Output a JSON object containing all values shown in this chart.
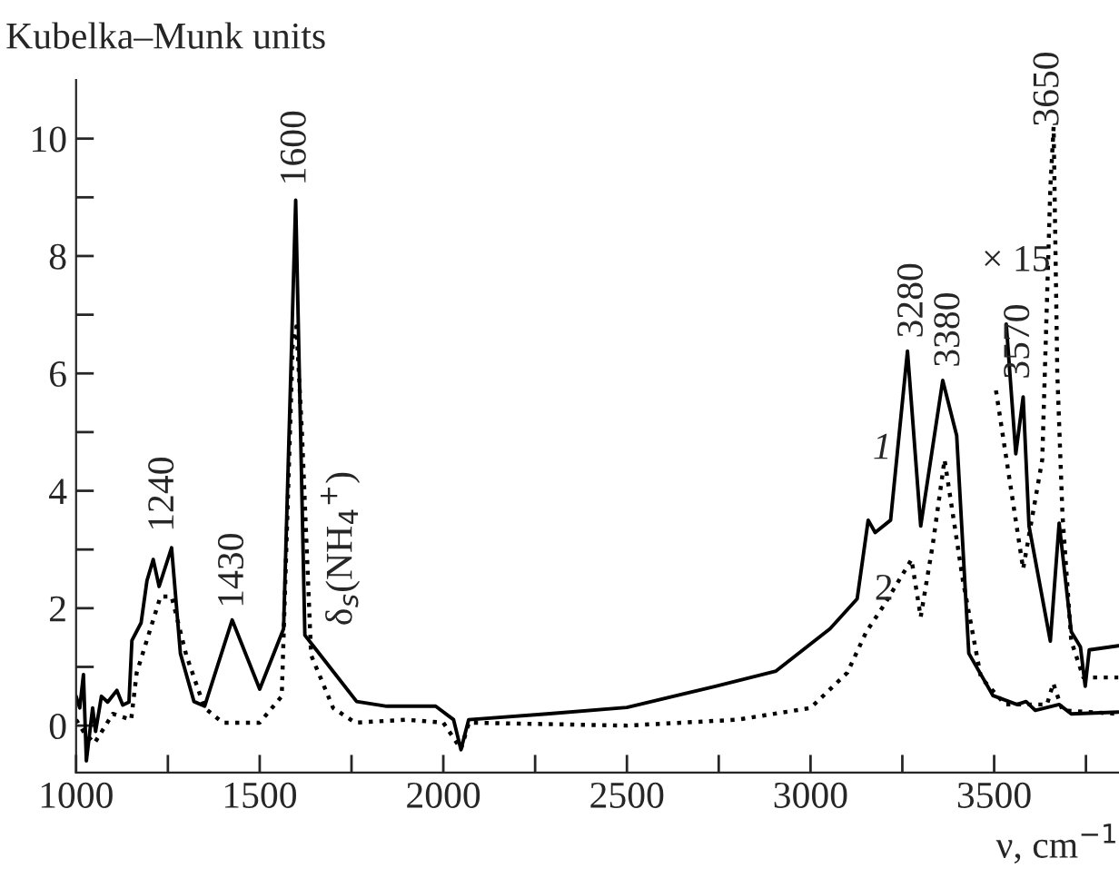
{
  "chart_data": {
    "type": "line",
    "xlabel": "ν, cm$^{−1}$",
    "ylabel": "Kubelka–Munk units",
    "xlim": [
      1000,
      3840
    ],
    "ylim": [
      -0.8,
      11
    ],
    "xticks": [
      1000,
      {
        "value": 1250,
        "label": null
      },
      1500,
      {
        "value": 1750,
        "label": null
      },
      2000,
      {
        "value": 2250,
        "label": null
      },
      2500,
      {
        "value": 2750,
        "label": null
      },
      3000,
      {
        "value": 3250,
        "label": null
      },
      3500,
      {
        "value": 3750,
        "label": null
      }
    ],
    "yticks": [
      0,
      {
        "value": 1,
        "label": null
      },
      2,
      {
        "value": 3,
        "label": null
      },
      4,
      {
        "value": 5,
        "label": null
      },
      6,
      {
        "value": 7,
        "label": null
      },
      8,
      {
        "value": 9,
        "label": null
      },
      10
    ],
    "grid": false,
    "legend": false,
    "marker": "none",
    "series": [
      {
        "name": "1",
        "color": "#000000",
        "line_style": "solid",
        "x": [
          1000,
          1010,
          1020,
          1028,
          1045,
          1053,
          1069,
          1086,
          1111,
          1127,
          1144,
          1152,
          1177,
          1193,
          1210,
          1226,
          1260,
          1284,
          1321,
          1350,
          1425,
          1500,
          1565,
          1598,
          1623,
          1648,
          1764,
          1846,
          1979,
          2028,
          2048,
          2069,
          2282,
          2500,
          2741,
          2906,
          3053,
          3127,
          3157,
          3176,
          3218,
          3264,
          3300,
          3360,
          3398,
          3431,
          3497,
          3562,
          3587,
          3612,
          3677,
          3710,
          3838
        ],
        "values": [
          0.5,
          0.3,
          0.87,
          -0.6,
          0.3,
          -0.1,
          0.5,
          0.4,
          0.6,
          0.35,
          0.4,
          1.45,
          1.75,
          2.47,
          2.83,
          2.37,
          3.03,
          1.23,
          0.41,
          0.33,
          1.8,
          0.62,
          1.65,
          8.95,
          1.54,
          1.34,
          0.41,
          0.33,
          0.33,
          0.1,
          -0.41,
          0.1,
          0.2,
          0.31,
          0.67,
          0.93,
          1.65,
          2.16,
          3.5,
          3.29,
          3.5,
          6.38,
          3.4,
          5.88,
          4.94,
          1.23,
          0.51,
          0.36,
          0.41,
          0.26,
          0.36,
          0.2,
          0.23
        ]
      },
      {
        "name": "2",
        "color": "#000000",
        "line_style": "dotted",
        "x": [
          1000,
          1020,
          1050,
          1100,
          1150,
          1165,
          1230,
          1260,
          1300,
          1350,
          1400,
          1500,
          1560,
          1590,
          1600,
          1615,
          1640,
          1700,
          1760,
          1900,
          2000,
          2048,
          2070,
          2500,
          2800,
          3000,
          3100,
          3152,
          3201,
          3275,
          3300,
          3333,
          3365,
          3415,
          3464,
          3530,
          3644,
          3661,
          3686,
          3838
        ],
        "values": [
          0.1,
          -0.1,
          -0.3,
          0.2,
          0.1,
          0.9,
          2.2,
          2.2,
          1.2,
          0.3,
          0.05,
          0.05,
          0.5,
          6.5,
          6.8,
          5.0,
          1.2,
          0.3,
          0.05,
          0.1,
          0.05,
          -0.4,
          0.05,
          0.0,
          0.1,
          0.3,
          0.9,
          1.6,
          2.06,
          2.83,
          1.85,
          3.09,
          4.53,
          2.47,
          0.82,
          0.36,
          0.36,
          0.72,
          0.26,
          0.2
        ]
      },
      {
        "color": "#000000",
        "line_style": "solid",
        "x": [
          3533,
          3559,
          3579,
          3595,
          3653,
          3677,
          3710,
          3735,
          3748,
          3759,
          3838
        ],
        "values": [
          6.84,
          4.63,
          5.6,
          3.4,
          1.44,
          3.45,
          1.6,
          1.34,
          0.67,
          1.29,
          1.36
        ]
      },
      {
        "color": "#000000",
        "line_style": "dotted",
        "x": [
          3505,
          3579,
          3631,
          3653,
          3662,
          3672,
          3686,
          3710,
          3743,
          3838
        ],
        "values": [
          5.71,
          2.67,
          4.53,
          9.16,
          10.2,
          6.0,
          3.6,
          1.44,
          0.82,
          0.82
        ]
      }
    ],
    "annotations": [
      "1240",
      "1430",
      "1600",
      "δ$_{s}$(NH$_{4}$$^{+}$)",
      "3280",
      "3380",
      "3570",
      "3650",
      "× 15"
    ]
  }
}
